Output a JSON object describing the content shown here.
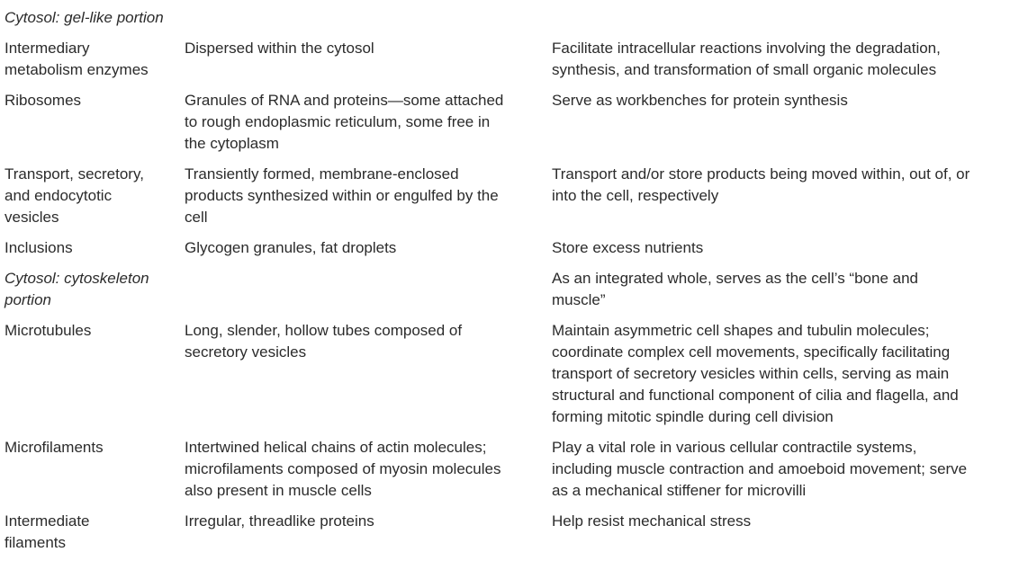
{
  "section_1_title": "Cytosol: gel-like portion",
  "rows": [
    {
      "name": "Intermediary\nmetabolism enzymes",
      "description": "Dispersed within the cytosol",
      "function": "Facilitate intracellular reactions involving the degradation,\nsynthesis, and transformation of small organic molecules"
    },
    {
      "name": "Ribosomes",
      "description": "Granules of RNA and proteins—some attached\nto rough endoplasmic reticulum, some free in\nthe cytoplasm",
      "function": "Serve as workbenches for protein synthesis"
    },
    {
      "name": "Transport, secretory,\nand endocytotic\nvesicles",
      "description": "Transiently formed, membrane-enclosed\nproducts synthesized within or engulfed by the\ncell",
      "function": "Transport and/or store products being moved within, out of, or\ninto the cell, respectively"
    },
    {
      "name": "Inclusions",
      "description": "Glycogen granules, fat droplets",
      "function": "Store excess nutrients"
    },
    {
      "name": "Cytosol: cytoskeleton\nportion",
      "name_italic": true,
      "description": "",
      "function": "As an integrated whole, serves as the cell’s “bone and\nmuscle”"
    },
    {
      "name": "Microtubules",
      "description": "Long, slender, hollow tubes composed of\nsecretory vesicles",
      "function": "Maintain asymmetric cell shapes and tubulin molecules;\ncoordinate complex cell movements, specifically facilitating\ntransport of secretory vesicles within cells, serving as main\nstructural and functional component of cilia and flagella, and\nforming mitotic spindle during cell division"
    },
    {
      "name": "Microfilaments",
      "description": "Intertwined helical chains of actin molecules;\nmicrofilaments composed of myosin molecules\nalso present in muscle cells",
      "function": "Play a vital role in various cellular contractile systems,\nincluding muscle contraction and amoeboid movement; serve\nas a mechanical stiffener for microvilli"
    },
    {
      "name": "Intermediate\nfilaments",
      "description": "Irregular, threadlike proteins",
      "function": "Help resist mechanical stress"
    }
  ]
}
